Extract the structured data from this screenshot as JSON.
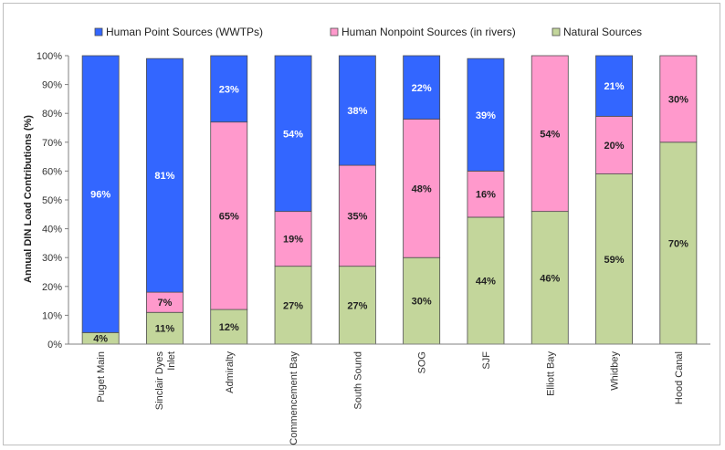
{
  "chart_data": {
    "type": "bar",
    "stacked": true,
    "ylabel": "Annual DIN Load Contributions (%)",
    "ylim": [
      0,
      100
    ],
    "yticks": [
      "0%",
      "10%",
      "20%",
      "30%",
      "40%",
      "50%",
      "60%",
      "70%",
      "80%",
      "90%",
      "100%"
    ],
    "legend_position": "top",
    "categories": [
      "Puget Main",
      "Sinclair Dyes Inlet",
      "Admiralty",
      "Commencement Bay",
      "South Sound",
      "SOG",
      "SJF",
      "Elliott Bay",
      "Whidbey",
      "Hood Canal"
    ],
    "series": [
      {
        "name": "Natural Sources",
        "color": "#c3d69b",
        "values": [
          4,
          11,
          12,
          27,
          27,
          30,
          44,
          46,
          59,
          70
        ],
        "labels": [
          "4%",
          "11%",
          "12%",
          "27%",
          "27%",
          "30%",
          "44%",
          "46%",
          "59%",
          "70%"
        ]
      },
      {
        "name": "Human Nonpoint Sources (in rivers)",
        "color": "#ff99cc",
        "values": [
          0,
          7,
          65,
          19,
          35,
          48,
          16,
          54,
          20,
          30
        ],
        "labels": [
          "",
          "7%",
          "65%",
          "19%",
          "35%",
          "48%",
          "16%",
          "54%",
          "20%",
          "30%"
        ]
      },
      {
        "name": "Human Point Sources (WWTPs)",
        "color": "#3366ff",
        "values": [
          96,
          81,
          23,
          54,
          38,
          22,
          39,
          0,
          21,
          0
        ],
        "labels": [
          "96%",
          "81%",
          "23%",
          "54%",
          "38%",
          "22%",
          "39%",
          "",
          "21%",
          ""
        ]
      }
    ],
    "legend_order": [
      "Human Point Sources (WWTPs)",
      "Human Nonpoint Sources (in rivers)",
      "Natural Sources"
    ],
    "grid": false
  }
}
